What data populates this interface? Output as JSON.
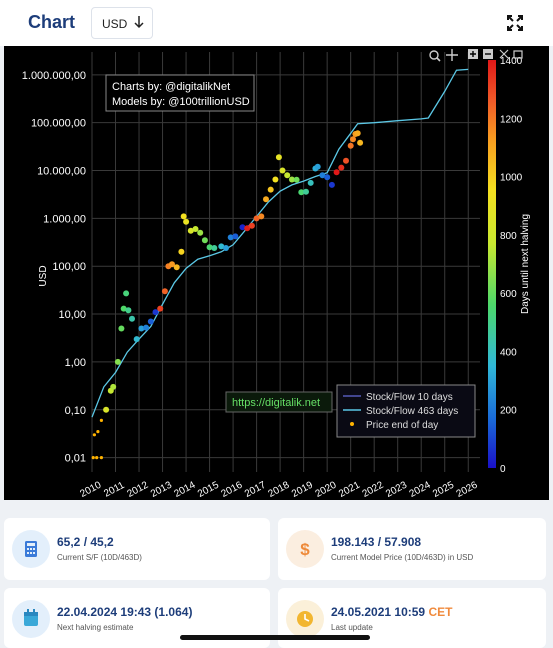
{
  "header": {
    "title": "Chart",
    "currency": "USD"
  },
  "chart_data": {
    "type": "scatter",
    "yscale": "log",
    "ylabel": "USD",
    "xlabel": "",
    "ylim": [
      0.005,
      3000000
    ],
    "xlim": [
      2010,
      2026.5
    ],
    "y_ticks": [
      {
        "value": 1000000,
        "label": "1.000.000,00"
      },
      {
        "value": 100000,
        "label": "100.000,00"
      },
      {
        "value": 10000,
        "label": "10.000,00"
      },
      {
        "value": 1000,
        "label": "1.000,00"
      },
      {
        "value": 100,
        "label": "100,00"
      },
      {
        "value": 10,
        "label": "10,00"
      },
      {
        "value": 1,
        "label": "1,00"
      },
      {
        "value": 0.1,
        "label": "0,10"
      },
      {
        "value": 0.01,
        "label": "0,01"
      }
    ],
    "x_ticks": [
      "2010",
      "2011",
      "2012",
      "2013",
      "2014",
      "2015",
      "2016",
      "2017",
      "2018",
      "2019",
      "2020",
      "2021",
      "2022",
      "2023",
      "2024",
      "2025",
      "2026"
    ],
    "colorbar": {
      "label": "Days until next halving",
      "range": [
        0,
        1400
      ],
      "ticks": [
        "0",
        "200",
        "400",
        "600",
        "800",
        "1000",
        "1200",
        "1400"
      ]
    },
    "credits": [
      "Charts by: @digitalikNet",
      "Models by: @100trillionUSD"
    ],
    "url_label": "https://digitalik.net",
    "legend": [
      "Stock/Flow 10 days",
      "Stock/Flow 463 days",
      "Price end of day"
    ],
    "legend_position": "bottom-right",
    "grid": true,
    "series": [
      {
        "name": "Stock/Flow 463 days",
        "color": "#5bc8e6",
        "points": [
          [
            2010.0,
            0.07
          ],
          [
            2010.5,
            0.3
          ],
          [
            2011.0,
            0.6
          ],
          [
            2011.5,
            1.6
          ],
          [
            2012.0,
            3.0
          ],
          [
            2012.5,
            5.5
          ],
          [
            2013.0,
            16
          ],
          [
            2013.5,
            45
          ],
          [
            2014.0,
            90
          ],
          [
            2014.5,
            140
          ],
          [
            2015.0,
            165
          ],
          [
            2015.5,
            200
          ],
          [
            2016.0,
            280
          ],
          [
            2016.5,
            550
          ],
          [
            2017.0,
            1100
          ],
          [
            2017.5,
            2200
          ],
          [
            2018.0,
            3700
          ],
          [
            2018.5,
            5000
          ],
          [
            2019.0,
            6000
          ],
          [
            2019.5,
            7500
          ],
          [
            2020.0,
            9000
          ],
          [
            2020.5,
            28000
          ],
          [
            2021.0,
            60000
          ],
          [
            2021.3,
            95000
          ],
          [
            2022.0,
            100000
          ],
          [
            2023.0,
            110000
          ],
          [
            2024.0,
            120000
          ],
          [
            2024.3,
            125000
          ],
          [
            2025.0,
            450000
          ],
          [
            2025.5,
            1250000
          ],
          [
            2026.0,
            1300000
          ]
        ]
      },
      {
        "name": "Price end of day",
        "points": [
          [
            2010.05,
            0.01
          ],
          [
            2010.2,
            0.01
          ],
          [
            2010.4,
            0.01
          ],
          [
            2010.1,
            0.03
          ],
          [
            2010.25,
            0.035
          ],
          [
            2010.4,
            0.06
          ],
          [
            2010.6,
            0.1
          ],
          [
            2010.8,
            0.25
          ],
          [
            2010.9,
            0.3
          ],
          [
            2011.1,
            1
          ],
          [
            2011.25,
            5
          ],
          [
            2011.35,
            13
          ],
          [
            2011.45,
            27
          ],
          [
            2011.55,
            12
          ],
          [
            2011.7,
            8
          ],
          [
            2011.9,
            3
          ],
          [
            2012.1,
            5
          ],
          [
            2012.3,
            5.2
          ],
          [
            2012.5,
            7
          ],
          [
            2012.7,
            11
          ],
          [
            2012.9,
            13
          ],
          [
            2013.1,
            30
          ],
          [
            2013.25,
            100
          ],
          [
            2013.4,
            110
          ],
          [
            2013.6,
            95
          ],
          [
            2013.8,
            200
          ],
          [
            2013.9,
            1100
          ],
          [
            2014.0,
            850
          ],
          [
            2014.2,
            550
          ],
          [
            2014.4,
            600
          ],
          [
            2014.6,
            500
          ],
          [
            2014.8,
            350
          ],
          [
            2015.0,
            250
          ],
          [
            2015.2,
            240
          ],
          [
            2015.5,
            260
          ],
          [
            2015.7,
            240
          ],
          [
            2015.9,
            400
          ],
          [
            2016.1,
            420
          ],
          [
            2016.4,
            650
          ],
          [
            2016.6,
            620
          ],
          [
            2016.8,
            700
          ],
          [
            2017.0,
            1000
          ],
          [
            2017.2,
            1100
          ],
          [
            2017.4,
            2500
          ],
          [
            2017.6,
            4000
          ],
          [
            2017.8,
            6500
          ],
          [
            2017.95,
            19000
          ],
          [
            2018.1,
            10000
          ],
          [
            2018.3,
            8000
          ],
          [
            2018.5,
            6500
          ],
          [
            2018.7,
            6400
          ],
          [
            2018.9,
            3500
          ],
          [
            2019.1,
            3600
          ],
          [
            2019.3,
            5500
          ],
          [
            2019.5,
            11000
          ],
          [
            2019.6,
            12000
          ],
          [
            2019.8,
            8000
          ],
          [
            2020.0,
            7200
          ],
          [
            2020.2,
            5000
          ],
          [
            2020.4,
            9200
          ],
          [
            2020.6,
            11500
          ],
          [
            2020.8,
            16000
          ],
          [
            2021.0,
            33000
          ],
          [
            2021.1,
            45000
          ],
          [
            2021.2,
            58000
          ],
          [
            2021.3,
            60000
          ],
          [
            2021.4,
            38000
          ]
        ]
      }
    ]
  },
  "cards": [
    {
      "value": "65,2 / 45,2",
      "label": "Current S/F (10D/463D)",
      "icon": "calculator-icon"
    },
    {
      "value": "198.143 / 57.908",
      "label": "Current Model Price (10D/463D) in USD",
      "icon": "dollar-icon"
    },
    {
      "value": "22.04.2024 19:43 (1.064)",
      "label": "Next halving estimate",
      "icon": "calendar-icon"
    },
    {
      "value": "24.05.2021 10:59",
      "value_suffix": "CET",
      "label": "Last update",
      "icon": "clock-icon"
    }
  ]
}
